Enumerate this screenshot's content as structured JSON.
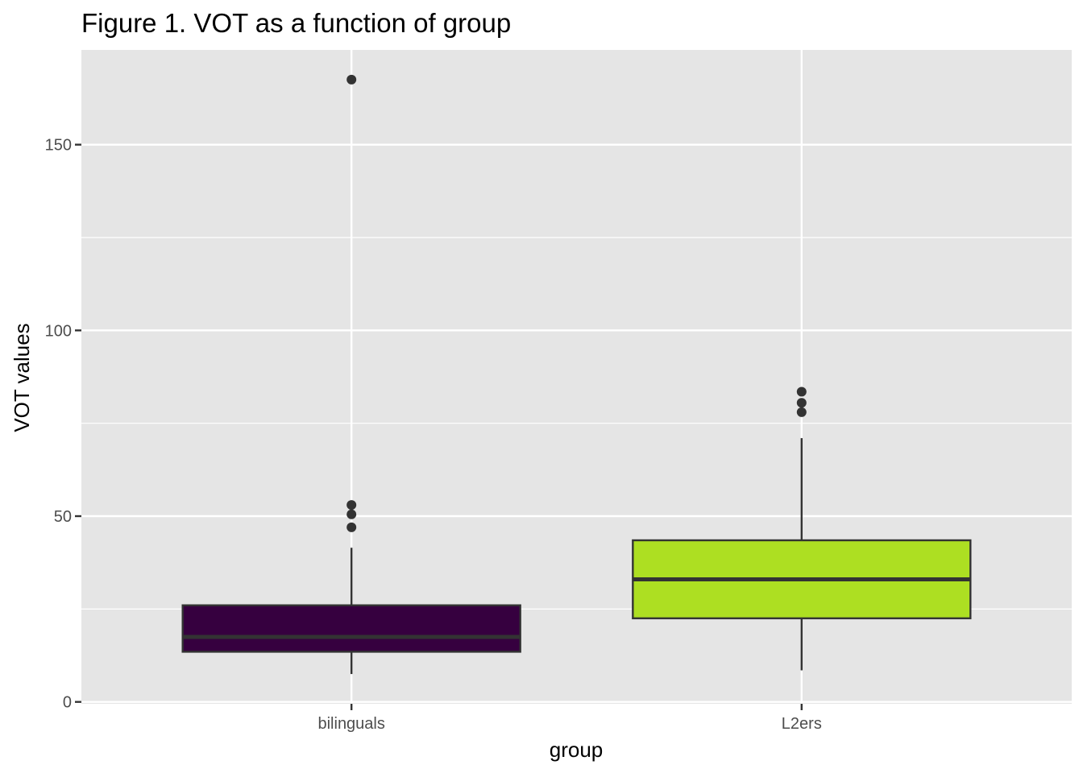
{
  "chart_data": {
    "type": "box",
    "title": "Figure 1. VOT as a function of group",
    "xlabel": "group",
    "ylabel": "VOT values",
    "categories": [
      "bilinguals",
      "L2ers"
    ],
    "ylim": [
      -0.5,
      175.5
    ],
    "yticks": [
      0,
      50,
      100,
      150
    ],
    "grid": true,
    "legend": "none",
    "panel_background": "#e5e5e5",
    "grid_color": "#ffffff",
    "box_outline_color": "#333333",
    "series": [
      {
        "category": "bilinguals",
        "color": "#36003f",
        "whisker_low": 7.5,
        "q1": 13.5,
        "median": 17.5,
        "q3": 26,
        "whisker_high": 41.5,
        "outliers": [
          167.5,
          53,
          50.5,
          47
        ]
      },
      {
        "category": "L2ers",
        "color": "#addf22",
        "whisker_low": 8.5,
        "q1": 22.5,
        "median": 33,
        "q3": 43.5,
        "whisker_high": 71,
        "outliers": [
          83.5,
          80.5,
          78
        ]
      }
    ]
  }
}
